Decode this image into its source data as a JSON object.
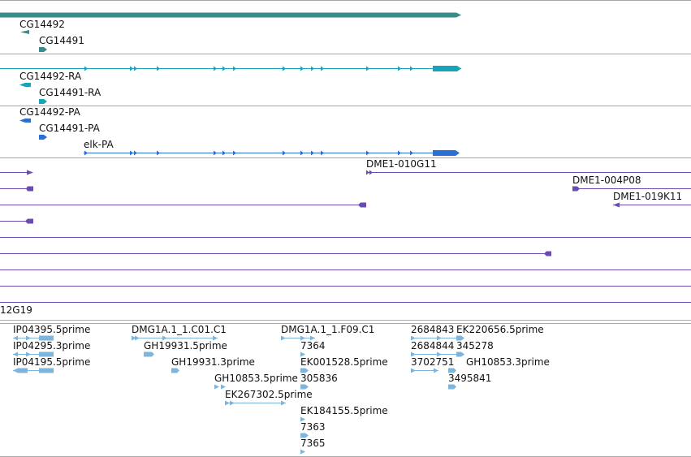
{
  "colors": {
    "gene": "#3a8c8a",
    "mrna": "#17a3b8",
    "cds": "#2a6fd6",
    "clone": "#6a4bb0",
    "est": "#7fb5da",
    "separator": "#aaaaaa"
  },
  "tracks": {
    "genes": {
      "labels": [
        "CG14492",
        "CG14491"
      ]
    },
    "transcripts": {
      "labels": [
        "CG14492-RA",
        "CG14491-RA"
      ]
    },
    "proteins": {
      "labels": [
        "CG14492-PA",
        "CG14491-PA",
        "elk-PA"
      ]
    },
    "clones": {
      "labels": [
        "DME1-010G11",
        "DME1-004P08",
        "DME1-019K11",
        "12G19"
      ]
    },
    "ests": {
      "labels": [
        "IP04395.5prime",
        "IP04295.3prime",
        "IP04195.5prime",
        "DMG1A.1_1.C01.C1",
        "GH19931.5prime",
        "GH19931.3prime",
        "GH10853.5prime",
        "EK267302.5prime",
        "DMG1A.1_1.F09.C1",
        "7364",
        "EK001528.5prime",
        "305836",
        "EK184155.5prime",
        "7363",
        "7365",
        "2684843",
        "EK220656.5prime",
        "2684844",
        "345278",
        "3702751",
        "GH10853.3prime",
        "3495841"
      ]
    }
  }
}
